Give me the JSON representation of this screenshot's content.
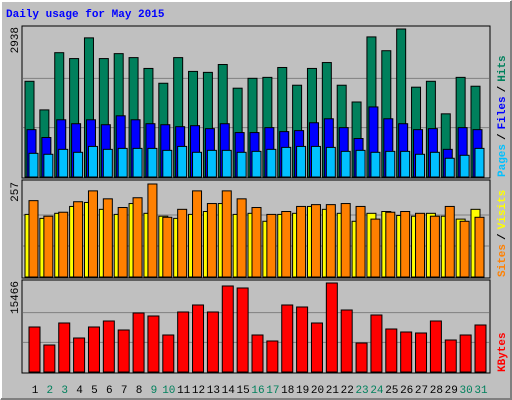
{
  "title": "Daily usage for May 2015",
  "legend_separator": "/",
  "chart_data": [
    {
      "type": "bar",
      "ylim": [
        0,
        2938
      ],
      "yticks": [
        2938
      ],
      "grid": true,
      "series": [
        {
          "name": "Hits",
          "color": "#00805c",
          "values": [
            1900,
            1332,
            2468,
            2351,
            2762,
            2351,
            2449,
            2370,
            2155,
            1861,
            2370,
            2096,
            2077,
            2233,
            1763,
            1959,
            1978,
            2174,
            1822,
            2155,
            2272,
            1822,
            1489,
            2781,
            2507,
            2938,
            1783,
            1900,
            1254,
            1978,
            1802
          ]
        },
        {
          "name": "Files",
          "color": "#0000ff",
          "values": [
            940,
            784,
            1136,
            1058,
            1136,
            1038,
            1215,
            1136,
            1058,
            1038,
            999,
            1019,
            960,
            1058,
            882,
            882,
            980,
            901,
            921,
            1077,
            1156,
            980,
            764,
            1391,
            1156,
            1058,
            940,
            960,
            549,
            980,
            940
          ]
        },
        {
          "name": "Pages",
          "color": "#00c0ff",
          "values": [
            470,
            451,
            549,
            490,
            607,
            549,
            568,
            568,
            568,
            529,
            607,
            490,
            529,
            529,
            490,
            509,
            549,
            588,
            607,
            607,
            588,
            509,
            529,
            490,
            509,
            509,
            451,
            490,
            372,
            431,
            568
          ]
        }
      ]
    },
    {
      "type": "bar",
      "ylim": [
        0,
        257
      ],
      "yticks": [
        257
      ],
      "grid": true,
      "series": [
        {
          "name": "Visits",
          "color": "#ffff00",
          "values": [
            173,
            162,
            176,
            195,
            206,
            187,
            173,
            203,
            176,
            168,
            162,
            173,
            181,
            203,
            173,
            176,
            154,
            173,
            176,
            195,
            187,
            176,
            154,
            176,
            181,
            170,
            168,
            176,
            168,
            160,
            187
          ]
        },
        {
          "name": "Sites",
          "color": "#ff8000",
          "values": [
            211,
            168,
            179,
            208,
            238,
            216,
            192,
            219,
            257,
            165,
            187,
            238,
            203,
            238,
            216,
            192,
            173,
            181,
            195,
            200,
            200,
            203,
            195,
            160,
            179,
            181,
            176,
            168,
            195,
            154,
            165
          ]
        }
      ]
    },
    {
      "type": "bar",
      "ylim": [
        0,
        15466
      ],
      "yticks": [
        15466
      ],
      "grid": true,
      "categories": [
        "1",
        "2",
        "3",
        "4",
        "5",
        "6",
        "7",
        "8",
        "9",
        "10",
        "11",
        "12",
        "13",
        "14",
        "15",
        "16",
        "17",
        "18",
        "19",
        "20",
        "21",
        "22",
        "23",
        "24",
        "25",
        "26",
        "27",
        "28",
        "29",
        "30",
        "31"
      ],
      "highlight": [
        1,
        2,
        8,
        9,
        15,
        16,
        22,
        23,
        29,
        30
      ],
      "highlight_color": "#00805c",
      "label_color": "#000000",
      "series": [
        {
          "name": "KBytes",
          "color": "#ff0000",
          "values": [
            7821,
            4693,
            8516,
            5909,
            7821,
            8864,
            7300,
            10254,
            9733,
            6431,
            10428,
            11645,
            10428,
            14947,
            14599,
            6431,
            5388,
            11645,
            11297,
            8516,
            15466,
            10776,
            5040,
            9907,
            7473,
            6952,
            6778,
            8864,
            5562,
            6431,
            8169
          ]
        }
      ]
    }
  ]
}
